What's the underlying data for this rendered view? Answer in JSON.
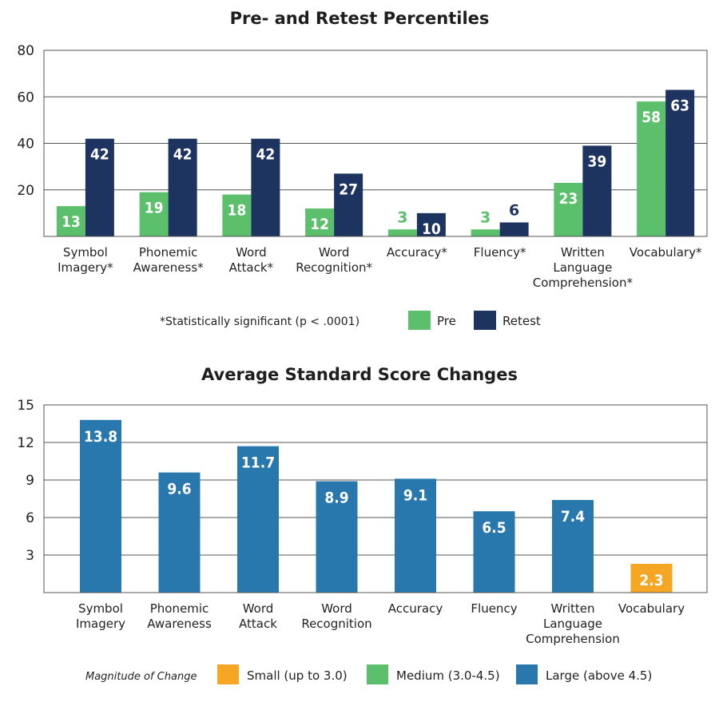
{
  "chart_data": [
    {
      "type": "bar",
      "title": "Pre- and Retest Percentiles",
      "categories": [
        [
          "Symbol",
          "Imagery*"
        ],
        [
          "Phonemic",
          "Awareness*"
        ],
        [
          "Word",
          "Attack*"
        ],
        [
          "Word",
          "Recognition*"
        ],
        [
          "Accuracy*"
        ],
        [
          "Fluency*"
        ],
        [
          "Written",
          "Language",
          "Comprehension*"
        ],
        [
          "Vocabulary*"
        ]
      ],
      "series": [
        {
          "name": "Pre",
          "color": "#5bbf6c",
          "values": [
            13,
            19,
            18,
            12,
            3,
            3,
            23,
            58
          ]
        },
        {
          "name": "Retest",
          "color": "#1d3461",
          "values": [
            42,
            42,
            42,
            27,
            10,
            6,
            39,
            63
          ]
        }
      ],
      "ylim": [
        0,
        80
      ],
      "yticks": [
        20,
        40,
        60,
        80
      ],
      "grid": true,
      "footnote": "*Statistically significant (p < .0001)",
      "legend_position": "bottom-right"
    },
    {
      "type": "bar",
      "title": "Average Standard Score Changes",
      "categories": [
        [
          "Symbol",
          "Imagery"
        ],
        [
          "Phonemic",
          "Awareness"
        ],
        [
          "Word",
          "Attack"
        ],
        [
          "Word",
          "Recognition"
        ],
        [
          "Accuracy"
        ],
        [
          "Fluency"
        ],
        [
          "Written",
          "Language",
          "Comprehension"
        ],
        [
          "Vocabulary"
        ]
      ],
      "values": [
        13.8,
        9.6,
        11.7,
        8.9,
        9.1,
        6.5,
        7.4,
        2.3
      ],
      "value_labels": [
        "13.8",
        "9.6",
        "11.7",
        "8.9",
        "9.1",
        "6.5",
        "7.4",
        "2.3"
      ],
      "magnitude": [
        "large",
        "large",
        "large",
        "large",
        "large",
        "large",
        "large",
        "small"
      ],
      "ylim": [
        0,
        15
      ],
      "yticks": [
        3,
        6,
        9,
        12,
        15
      ],
      "grid": true,
      "legend": {
        "title": "Magnitude of Change",
        "items": [
          {
            "key": "small",
            "label": "Small (up to 3.0)",
            "color": "#f5a623"
          },
          {
            "key": "medium",
            "label": "Medium (3.0-4.5)",
            "color": "#5bbf6c"
          },
          {
            "key": "large",
            "label": "Large (above 4.5)",
            "color": "#2878ae"
          }
        ]
      },
      "legend_position": "bottom"
    }
  ]
}
